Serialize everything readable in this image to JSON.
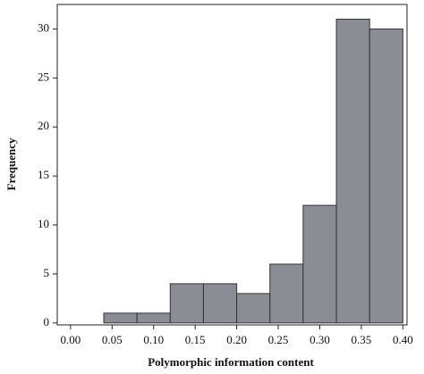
{
  "chart_data": {
    "type": "histogram",
    "xlabel": "Polymorphic information content",
    "ylabel": "Frequency",
    "bins": [
      0.04,
      0.08,
      0.12,
      0.16,
      0.2,
      0.24,
      0.28,
      0.32,
      0.36,
      0.4
    ],
    "values": [
      1,
      1,
      4,
      4,
      3,
      6,
      12,
      31,
      30
    ],
    "color": "#8a8d93",
    "xlim": [
      -0.016,
      0.405
    ],
    "ylim": [
      -0.2,
      32.5
    ],
    "xticks": [
      {
        "value": 0,
        "label": "0.00"
      },
      {
        "value": 0.05,
        "label": "0.05"
      },
      {
        "value": 0.1,
        "label": "0.10"
      },
      {
        "value": 0.15,
        "label": "0.15"
      },
      {
        "value": 0.2,
        "label": "0.20"
      },
      {
        "value": 0.25,
        "label": "0.25"
      },
      {
        "value": 0.3,
        "label": "0.30"
      },
      {
        "value": 0.35,
        "label": "0.35"
      },
      {
        "value": 0.4,
        "label": "0.40"
      }
    ],
    "yticks": [
      0,
      5,
      10,
      15,
      20,
      25,
      30
    ]
  }
}
